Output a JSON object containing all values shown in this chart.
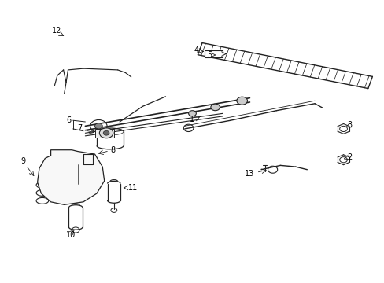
{
  "background_color": "#ffffff",
  "line_color": "#222222",
  "label_color": "#000000",
  "figsize": [
    4.89,
    3.6
  ],
  "dpi": 100
}
